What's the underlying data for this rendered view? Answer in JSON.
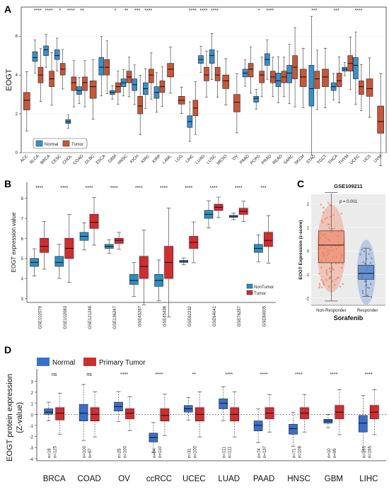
{
  "panels": {
    "A": "A",
    "B": "B",
    "C": "C",
    "D": "D"
  },
  "colors": {
    "normal": "#3a8fc9",
    "tumor": "#c5573a",
    "nontumor_b": "#2d8fbf",
    "tumor_b": "#cf2e2e",
    "responder": "#4a7fc9",
    "nonresponder": "#f07a5a",
    "d_normal": "#3a6fc9",
    "d_tumor": "#cf2e2e",
    "label_red": "#d33b2c",
    "label_green": "#2e9a4a"
  },
  "chart_data": [
    {
      "id": "A",
      "type": "box",
      "ylabel": "EOGT",
      "ylim": [
        0,
        7.5
      ],
      "yticks": [
        0,
        2,
        4,
        6
      ],
      "legend": [
        "Normal",
        "Tumor"
      ],
      "categories": [
        "ACC",
        "BLCA",
        "BRCA",
        "CESC",
        "CHOL",
        "COAD",
        "DLBC",
        "ESCA",
        "GBM",
        "HNSC",
        "KICH",
        "KIRC",
        "KIRP",
        "LAML",
        "LGG",
        "LIHC",
        "LUAD",
        "LUSC",
        "MESO",
        "OV",
        "PAAD",
        "PCPG",
        "PRAD",
        "READ",
        "SARC",
        "SKCM",
        "STAD",
        "TGCT",
        "THCA",
        "THYM",
        "UCEC",
        "UCS",
        "UVM"
      ],
      "label_colors": [
        "k",
        "g",
        "r",
        "g",
        "r",
        "r",
        "k",
        "k",
        "r",
        "r",
        "r",
        "r",
        "k",
        "k",
        "k",
        "r",
        "g",
        "g",
        "k",
        "k",
        "k",
        "r",
        "g",
        "k",
        "k",
        "k",
        "r",
        "k",
        "r",
        "k",
        "g",
        "k",
        "k"
      ],
      "significance": [
        "",
        "****",
        "****",
        "*",
        "****",
        "**",
        "",
        "",
        "*",
        "**",
        "***",
        "****",
        "",
        "",
        "",
        "****",
        "****",
        "****",
        "",
        "",
        "",
        "*",
        "****",
        "",
        "",
        "",
        "***",
        "",
        "***",
        "",
        "****",
        "",
        ""
      ],
      "series": [
        {
          "name": "Normal",
          "boxes": [
            null,
            [
              4.7,
              4.9,
              5.2
            ],
            [
              5,
              5.3,
              5.5
            ],
            [
              4.8,
              5.0,
              5.3
            ],
            [
              1.5,
              1.6,
              1.7
            ],
            [
              3.0,
              3.2,
              3.4
            ],
            null,
            [
              4.0,
              4.4,
              4.9
            ],
            [
              3.0,
              3.1,
              3.2
            ],
            [
              3.4,
              3.6,
              3.8
            ],
            [
              3.2,
              3.5,
              3.8
            ],
            [
              3.0,
              3.3,
              3.6
            ],
            [
              2.8,
              3.1,
              3.4
            ],
            null,
            null,
            [
              1.3,
              1.6,
              1.9
            ],
            [
              4.6,
              4.8,
              5.0
            ],
            [
              4.6,
              5.0,
              5.3
            ],
            null,
            null,
            [
              3.9,
              4.1,
              4.3
            ],
            [
              2.6,
              2.8,
              2.9
            ],
            [
              4.5,
              4.8,
              5.1
            ],
            [
              3.4,
              3.7,
              4.1
            ],
            [
              3.6,
              4.1,
              4.5
            ],
            null,
            [
              2.4,
              3.3,
              4.5
            ],
            null,
            [
              3.2,
              3.4,
              3.6
            ],
            [
              4.2,
              4.3,
              4.4
            ],
            [
              3.8,
              4.5,
              4.9
            ],
            null,
            null
          ]
        },
        {
          "name": "Tumor",
          "boxes": [
            [
              2.2,
              2.7,
              3.1
            ],
            [
              3.6,
              4.0,
              4.4
            ],
            [
              3.4,
              3.8,
              4.2
            ],
            [
              4.0,
              4.3,
              4.6
            ],
            [
              3.2,
              3.6,
              3.9
            ],
            [
              3.2,
              3.6,
              3.9
            ],
            [
              2.8,
              3.4,
              3.7
            ],
            [
              4.0,
              4.4,
              4.8
            ],
            [
              3.1,
              3.4,
              3.6
            ],
            [
              3.6,
              3.9,
              4.2
            ],
            [
              2.0,
              2.4,
              2.9
            ],
            [
              3.6,
              4.0,
              4.3
            ],
            [
              3.1,
              3.4,
              3.7
            ],
            [
              3.9,
              4.3,
              4.6
            ],
            [
              2.5,
              2.7,
              2.9
            ],
            [
              1.9,
              2.3,
              2.7
            ],
            [
              3.7,
              4.0,
              4.4
            ],
            [
              3.7,
              4.0,
              4.4
            ],
            [
              3.3,
              3.7,
              4.0
            ],
            [
              2.1,
              2.6,
              3.0
            ],
            [
              3.9,
              4.3,
              4.6
            ],
            [
              3.6,
              4.0,
              4.2
            ],
            [
              3.6,
              3.9,
              4.2
            ],
            [
              3.6,
              3.9,
              4.2
            ],
            [
              3.8,
              4.4,
              5.0
            ],
            [
              3.4,
              3.9,
              4.3
            ],
            [
              3.3,
              3.8,
              4.2
            ],
            [
              3.4,
              3.9,
              4.3
            ],
            [
              3.4,
              3.7,
              4.1
            ],
            [
              4.2,
              4.6,
              5.0
            ],
            [
              3.0,
              3.4,
              3.7
            ],
            [
              2.9,
              3.3,
              3.8
            ],
            [
              1.0,
              1.6,
              2.4
            ]
          ]
        }
      ]
    },
    {
      "id": "B",
      "type": "box",
      "ylabel": "EOGT expression value",
      "ylim": [
        2.8,
        8.8
      ],
      "yticks": [
        3,
        4,
        5,
        6,
        7,
        8
      ],
      "legend": [
        "NonTumor",
        "Tumor"
      ],
      "categories": [
        "GSE102079",
        "GSE102083",
        "GSE121248",
        "GSE136247",
        "GSE45267",
        "GSE45436",
        "GSE62232",
        "GSE64041",
        "GSE76297",
        "GSE84005"
      ],
      "significance": [
        "****",
        "****",
        "****",
        "****",
        "****",
        "****",
        "****",
        "****",
        "****",
        "***"
      ],
      "series": [
        {
          "name": "NonTumor",
          "boxes": [
            [
              4.6,
              4.8,
              5.0
            ],
            [
              4.6,
              4.8,
              5.1
            ],
            [
              5.9,
              6.1,
              6.3
            ],
            [
              5.5,
              5.6,
              5.7
            ],
            [
              3.7,
              3.9,
              4.2
            ],
            [
              3.6,
              3.9,
              4.2
            ],
            [
              4.8,
              4.85,
              4.9
            ],
            [
              7.0,
              7.2,
              7.4
            ],
            [
              7.05,
              7.1,
              7.15
            ],
            [
              5.3,
              5.5,
              5.7
            ]
          ]
        },
        {
          "name": "Tumor",
          "boxes": [
            [
              5.3,
              5.6,
              6.0
            ],
            [
              5.0,
              5.5,
              6.0
            ],
            [
              6.5,
              6.8,
              7.2
            ],
            [
              5.75,
              5.9,
              6.0
            ],
            [
              4.0,
              4.6,
              5.1
            ],
            [
              4.0,
              4.8,
              5.6
            ],
            [
              5.5,
              5.8,
              6.1
            ],
            [
              7.4,
              7.55,
              7.7
            ],
            [
              7.2,
              7.35,
              7.5
            ],
            [
              5.6,
              5.9,
              6.3
            ]
          ]
        }
      ]
    },
    {
      "id": "C",
      "type": "box",
      "title": "GSE109211",
      "subtitle": "p = 0.001",
      "ylabel": "EOGT Expression (z-score)",
      "xlabel": "Sorafenib",
      "ylim": [
        -2.3,
        2.4
      ],
      "yticks": [
        -2,
        -1,
        0,
        1,
        2
      ],
      "categories": [
        "Non-Responder",
        "Responder"
      ],
      "boxes": [
        [
          -0.5,
          0.25,
          0.85
        ],
        [
          -1.2,
          -0.95,
          -0.6
        ]
      ]
    },
    {
      "id": "D",
      "type": "box",
      "ylabel": "EOGT protein expression\n(Z-value)",
      "ylim": [
        -4.2,
        3.6
      ],
      "yticks": [
        -4,
        -3,
        -2,
        -1,
        0,
        1,
        2,
        3
      ],
      "legend": [
        "Normal",
        "Primary Tumor"
      ],
      "categories": [
        "BRCA",
        "COAD",
        "OV",
        "ccRCC",
        "UCEC",
        "LUAD",
        "PAAD",
        "HNSC",
        "GBM",
        "LIHC"
      ],
      "significance": [
        "ns",
        "ns",
        "****",
        "****",
        "**",
        "****",
        "****",
        "****",
        "****",
        "****"
      ],
      "n_normal": [
        "n=18",
        "n=100",
        "n=25",
        "n=84",
        "n=31",
        "n=111",
        "n=74",
        "n=71",
        "n=10",
        "n=165"
      ],
      "n_tumor": [
        "n=125",
        "n=97",
        "n=100",
        "n=110",
        "n=100",
        "n=111",
        "n=137",
        "n=108",
        "n=99",
        "n=165"
      ],
      "series": [
        {
          "name": "Normal",
          "boxes": [
            [
              0.0,
              0.2,
              0.5
            ],
            [
              -0.6,
              0.1,
              0.9
            ],
            [
              0.3,
              0.7,
              1.1
            ],
            [
              -2.5,
              -2.1,
              -1.7
            ],
            [
              0.2,
              0.5,
              0.8
            ],
            [
              0.5,
              1.0,
              1.4
            ],
            [
              -1.5,
              -1.0,
              -0.6
            ],
            [
              -1.8,
              -1.3,
              -0.9
            ],
            [
              -0.8,
              -0.6,
              -0.45
            ],
            [
              -1.6,
              -0.8,
              -0.1
            ]
          ]
        },
        {
          "name": "Primary Tumor",
          "boxes": [
            [
              -0.5,
              0.1,
              0.6
            ],
            [
              -0.6,
              0.0,
              0.6
            ],
            [
              -0.4,
              0.1,
              0.5
            ],
            [
              -0.6,
              -0.1,
              0.5
            ],
            [
              -0.6,
              0.0,
              0.6
            ],
            [
              -0.6,
              0.0,
              0.6
            ],
            [
              -0.4,
              0.1,
              0.6
            ],
            [
              -0.4,
              0.1,
              0.6
            ],
            [
              -0.4,
              0.2,
              0.8
            ],
            [
              -0.4,
              0.2,
              0.8
            ]
          ]
        }
      ]
    }
  ]
}
